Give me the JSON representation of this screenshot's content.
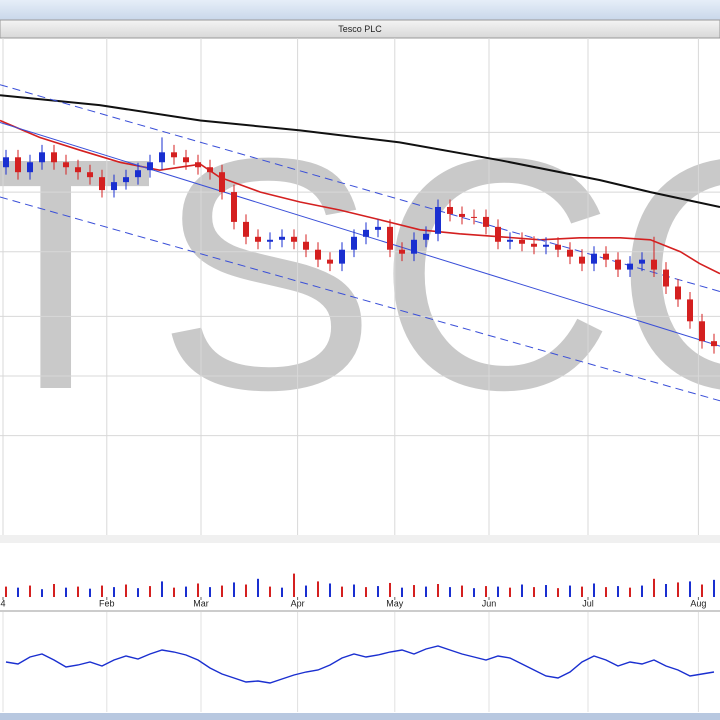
{
  "chart_data": [
    {
      "type": "candlestick",
      "title": "Tesco PLC",
      "watermark": "TSCO",
      "xlim": [
        -0.5,
        59.5
      ],
      "ylim": [
        0,
        100
      ],
      "yticks": [
        20,
        32,
        44,
        57,
        69,
        81
      ],
      "grid": true,
      "up_color": "#1a2fd0",
      "down_color": "#d42020",
      "open": [
        74,
        76,
        73,
        75,
        77,
        75,
        74,
        73,
        72,
        69.4,
        71,
        72,
        73.4,
        75,
        77,
        76,
        75,
        74,
        73,
        69,
        63,
        60,
        59,
        59.4,
        60,
        59,
        57.4,
        55.4,
        54.6,
        57.4,
        60,
        61.4,
        62,
        57.4,
        56.6,
        59.4,
        60.6,
        66,
        64.6,
        64,
        64,
        62,
        59,
        59.4,
        58.6,
        58,
        58.4,
        57.4,
        56,
        54.6,
        56.6,
        55.4,
        53.4,
        54.6,
        55.4,
        53.4,
        50,
        47.4,
        43,
        39
      ],
      "high": [
        77.5,
        77.5,
        76.5,
        78.5,
        78.5,
        76.5,
        75.5,
        74.5,
        73.5,
        72.5,
        73.5,
        74.9,
        76.5,
        80,
        78.5,
        77.5,
        76.5,
        75.5,
        74.5,
        70.5,
        64.5,
        61.5,
        60.9,
        61.5,
        61.5,
        60.5,
        58.9,
        56.9,
        58.9,
        61.5,
        62.9,
        63.5,
        63.5,
        58.9,
        60.9,
        62.1,
        67.5,
        67.5,
        66.1,
        65.5,
        65.5,
        63.5,
        60.9,
        60.9,
        60.1,
        59.9,
        59.9,
        58.9,
        57.5,
        58.1,
        58.1,
        56.9,
        56.1,
        56.9,
        60,
        54.9,
        51.5,
        48.9,
        44.5,
        40.5
      ],
      "low": [
        72.5,
        71.5,
        71.5,
        73.5,
        73.5,
        72.5,
        71.5,
        70.5,
        67.9,
        67.9,
        69.5,
        70.5,
        71.9,
        73.5,
        74.5,
        73.5,
        72.5,
        71.5,
        67.5,
        61.5,
        58.5,
        57.5,
        57.5,
        57.9,
        57.5,
        55.9,
        53.9,
        53.1,
        53.1,
        55.9,
        58.5,
        59.9,
        55.9,
        55.1,
        55.1,
        57.9,
        59.1,
        63.1,
        62.5,
        62.5,
        60.5,
        57.5,
        57.5,
        57.1,
        56.5,
        56.5,
        55.9,
        54.5,
        53.1,
        53.1,
        53.9,
        51.9,
        51.9,
        53.1,
        51.9,
        48.5,
        45.9,
        41.5,
        37.5,
        36.5
      ],
      "close": [
        76,
        73,
        75,
        77,
        75,
        74,
        73,
        72,
        69.4,
        71,
        72,
        73.4,
        75,
        77,
        76,
        75,
        74,
        73,
        69,
        63,
        60,
        59,
        59.4,
        60,
        59,
        57.4,
        55.4,
        54.6,
        57.4,
        60,
        61.4,
        62,
        57.4,
        56.6,
        59.4,
        60.6,
        66,
        64.6,
        64,
        64,
        62,
        59,
        59.4,
        58.6,
        58,
        58.4,
        57.4,
        56,
        54.6,
        56.6,
        55.4,
        53.4,
        54.6,
        55.4,
        53.4,
        50,
        47.4,
        43,
        39,
        38
      ],
      "series": [
        {
          "color": "#d42020",
          "dash": false,
          "width": 1.6,
          "x": [
            -0.5,
            2.8,
            6.2,
            9.5,
            12.8,
            16.2,
            17.8,
            21.2,
            24.5,
            27.8,
            31.2,
            34.5,
            37.8,
            41.2,
            44.5,
            47.8,
            51.2,
            53.7,
            56.2,
            57.8,
            59.5
          ],
          "values": [
            83.4,
            80,
            77.4,
            75,
            73.4,
            74.6,
            72,
            69,
            67,
            65.4,
            63.4,
            61.4,
            60.6,
            60,
            59.4,
            59.8,
            59.8,
            59.4,
            57,
            54.6,
            52.6
          ]
        },
        {
          "color": "#111111",
          "dash": false,
          "width": 2,
          "x": [
            -0.5,
            7.8,
            16.2,
            24.5,
            32.8,
            41.2,
            49.5,
            53.7,
            59.5
          ],
          "values": [
            88.5,
            86.5,
            83.4,
            81.4,
            79,
            75.4,
            71.4,
            69,
            66
          ]
        },
        {
          "color": "#3a4fd8",
          "dash": false,
          "width": 1,
          "x": [
            -0.5,
            59.5
          ],
          "values": [
            83,
            38
          ]
        },
        {
          "color": "#3a4fd8",
          "dash": true,
          "width": 1,
          "x": [
            -0.5,
            59.5
          ],
          "values": [
            90.6,
            49
          ]
        },
        {
          "color": "#3a4fd8",
          "dash": true,
          "width": 1,
          "x": [
            -0.5,
            59.5
          ],
          "values": [
            68,
            27
          ]
        }
      ]
    },
    {
      "type": "bar",
      "xlim": [
        -0.5,
        59.5
      ],
      "ylim": [
        0,
        100
      ],
      "colors": [
        "#d42020",
        "#1a2fd0"
      ],
      "xticks": [
        {
          "value": -0.25,
          "label": "4"
        },
        {
          "value": 8.4,
          "label": "Feb"
        },
        {
          "value": 16.25,
          "label": "Mar"
        },
        {
          "value": 24.3,
          "label": "Apr"
        },
        {
          "value": 32.4,
          "label": "May"
        },
        {
          "value": 40.25,
          "label": "Jun"
        },
        {
          "value": 48.5,
          "label": "Jul"
        },
        {
          "value": 57.7,
          "label": "Aug"
        }
      ],
      "values": [
        20,
        18,
        22,
        15,
        25,
        18,
        20,
        16,
        22,
        19,
        24,
        17,
        21,
        30,
        18,
        20,
        26,
        19,
        22,
        28,
        24,
        35,
        20,
        18,
        45,
        22,
        30,
        26,
        20,
        24,
        19,
        21,
        27,
        18,
        23,
        20,
        25,
        19,
        22,
        17,
        21,
        20,
        18,
        24,
        19,
        23,
        17,
        22,
        20,
        26,
        19,
        21,
        18,
        22,
        35,
        25,
        28,
        30,
        24,
        33
      ]
    },
    {
      "type": "line",
      "xlim": [
        -0.5,
        59.5
      ],
      "ylim": [
        0,
        100
      ],
      "color": "#1a2fd0",
      "values": [
        50,
        48,
        55,
        58,
        52,
        45,
        47,
        50,
        46,
        52,
        56,
        53,
        58,
        62,
        60,
        57,
        52,
        44,
        38,
        34,
        30,
        31,
        29,
        33,
        37,
        40,
        42,
        47,
        54,
        58,
        55,
        57,
        60,
        62,
        58,
        63,
        66,
        62,
        58,
        55,
        52,
        56,
        54,
        48,
        42,
        36,
        34,
        40,
        50,
        56,
        52,
        46,
        50,
        48,
        52,
        46,
        42,
        36,
        38,
        40
      ]
    }
  ]
}
